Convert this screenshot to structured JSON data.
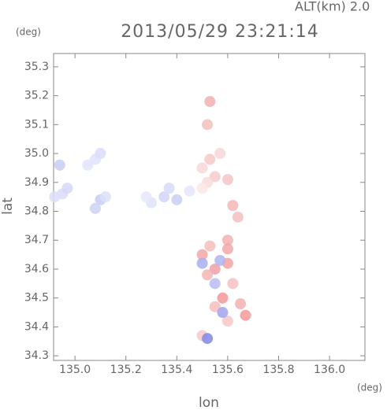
{
  "chart_data": {
    "type": "scatter",
    "title": "2013/05/29 23:21:14",
    "subtitle": "ALT(km) 2.0",
    "y_unit": "(deg)",
    "x_unit": "(deg)",
    "xlabel": "lon",
    "ylabel": "lat",
    "xlim": [
      134.916,
      136.139
    ],
    "ylim": [
      34.284,
      35.346
    ],
    "xticks": [
      {
        "value": 135,
        "label": "135.0"
      },
      135.2,
      135.4,
      135.6,
      135.8,
      {
        "value": 136,
        "label": "136.0"
      }
    ],
    "yticks": [
      35.3,
      35.2,
      35.1,
      {
        "value": 35,
        "label": "35.0"
      },
      34.9,
      34.8,
      34.7,
      34.6,
      34.5,
      34.4,
      34.3
    ],
    "x": [
      134.95,
      134.97,
      134.92,
      134.94,
      135.08,
      135.1,
      135.05,
      135.1,
      135.08,
      135.12,
      135.35,
      135.4,
      135.3,
      135.37,
      135.45,
      135.28,
      135.53,
      135.5,
      135.55,
      135.6,
      135.52,
      135.57,
      135.5,
      135.62,
      135.64,
      135.6,
      135.5,
      135.55,
      135.6,
      135.62,
      135.58,
      135.55,
      135.65,
      135.67,
      135.6,
      135.52,
      135.6,
      135.53,
      135.5,
      135.57,
      135.55,
      135.5,
      135.58,
      135.52,
      135.53,
      135.52
    ],
    "y": [
      34.86,
      34.88,
      34.85,
      34.96,
      34.98,
      35.0,
      34.96,
      34.84,
      34.81,
      34.85,
      34.85,
      34.84,
      34.83,
      34.88,
      34.87,
      34.85,
      34.98,
      34.95,
      34.92,
      34.91,
      34.9,
      35.0,
      34.88,
      34.82,
      34.78,
      34.7,
      34.65,
      34.6,
      34.62,
      34.55,
      34.5,
      34.47,
      34.48,
      34.44,
      34.42,
      34.58,
      34.67,
      34.68,
      34.37,
      34.63,
      34.55,
      34.62,
      34.45,
      34.36,
      35.18,
      35.1
    ],
    "colors": [
      "#d8dcf8",
      "#d4d8f6",
      "#dcdff8",
      "#c8cef4",
      "#dfe2fa",
      "#d9ddf8",
      "#e2e5fa",
      "#c8cef4",
      "#cdd2f5",
      "#dde0f8",
      "#d0d5f6",
      "#c9cff5",
      "#dfe2fa",
      "#d6daf7",
      "#e4e6fa",
      "#e6e8fb",
      "#f6c8c8",
      "#f9d8d8",
      "#f6cdcd",
      "#f4c6c6",
      "#f9dada",
      "#f8d6d6",
      "#fbe6e6",
      "#f3b6b6",
      "#f4c0c0",
      "#f2b0b0",
      "#f5a8a8",
      "#f0a0a8",
      "#f3a3a3",
      "#f8c0c0",
      "#f29898",
      "#f7bcbc",
      "#f3b0b0",
      "#f29a9a",
      "#f7c6c6",
      "#f5b5b5",
      "#f2a8a8",
      "#f6bcbc",
      "#f7c8c8",
      "#b0b4f0",
      "#b8bcf2",
      "#a8aeee",
      "#a0a6ec",
      "#8088e8",
      "#f0b0b0",
      "#f5c0c0"
    ]
  }
}
